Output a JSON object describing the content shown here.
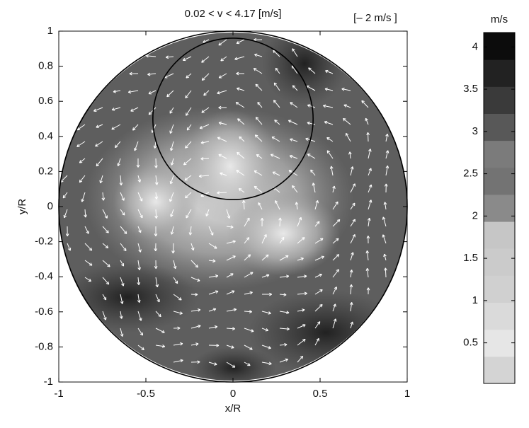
{
  "chart_data": {
    "type": "vector_field",
    "title": "0.02 < v < 4.17  [m/s]",
    "scale_label": "[– 2 m/s ]",
    "x_label": "x/R",
    "y_label": "y/R",
    "xlim": [
      -1,
      1
    ],
    "ylim": [
      -1,
      1
    ],
    "xticks": [
      -1,
      -0.5,
      0,
      0.5,
      1
    ],
    "yticks": [
      -1,
      -0.8,
      -0.6,
      -0.4,
      -0.2,
      0,
      0.2,
      0.4,
      0.6,
      0.8,
      1
    ],
    "circles": [
      {
        "x": 0,
        "y": 0,
        "r": 1
      },
      {
        "x": 0,
        "y": 0.5,
        "r": 0.46
      }
    ],
    "colorbar": {
      "label": "m/s",
      "clim": [
        0.02,
        4.17
      ],
      "ticks": [
        0.5,
        1,
        1.5,
        2,
        2.5,
        3,
        3.5,
        4
      ],
      "colors": [
        "#d4d4d4",
        "#e6e6e6",
        "#dadada",
        "#d0d0d0",
        "#cbcbcb",
        "#c6c6c6",
        "#8a8a8a",
        "#737373",
        "#7b7b7b",
        "#585858",
        "#3a3a3a",
        "#222222",
        "#0c0c0c"
      ]
    }
  }
}
